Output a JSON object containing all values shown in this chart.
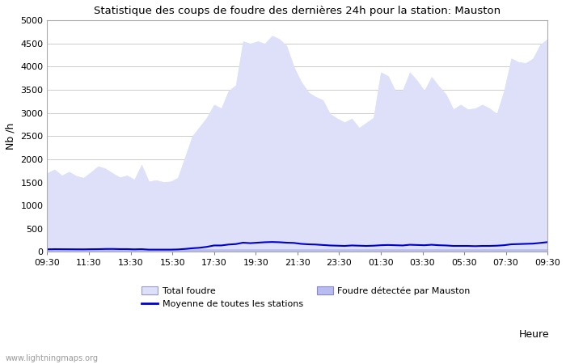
{
  "title": "Statistique des coups de foudre des dernières 24h pour la station: Mauston",
  "ylabel": "Nb /h",
  "xlabel": "Heure",
  "watermark": "www.lightningmaps.org",
  "ylim": [
    0,
    5000
  ],
  "yticks": [
    0,
    500,
    1000,
    1500,
    2000,
    2500,
    3000,
    3500,
    4000,
    4500,
    5000
  ],
  "xtick_labels": [
    "09:30",
    "11:30",
    "13:30",
    "15:30",
    "17:30",
    "19:30",
    "21:30",
    "23:30",
    "01:30",
    "03:30",
    "05:30",
    "07:30",
    "09:30"
  ],
  "bg_color": "#ffffff",
  "plot_bg_color": "#ffffff",
  "grid_color": "#cccccc",
  "total_foudre_color": "#dde0f8",
  "total_foudre_edge": "#9999cc",
  "mauston_color": "#b8bcf0",
  "mauston_edge": "#8888cc",
  "avg_line_color": "#0000cc",
  "legend1_label": "Total foudre",
  "legend2_label": "Moyenne de toutes les stations",
  "legend3_label": "Foudre détectée par Mauston",
  "total_foudre_values": [
    1700,
    1780,
    1650,
    1730,
    1640,
    1600,
    1720,
    1850,
    1800,
    1700,
    1610,
    1650,
    1560,
    1880,
    1520,
    1550,
    1510,
    1520,
    1600,
    2050,
    2500,
    2700,
    2900,
    3180,
    3100,
    3480,
    3600,
    4550,
    4500,
    4550,
    4500,
    4670,
    4600,
    4450,
    4000,
    3680,
    3450,
    3350,
    3280,
    2980,
    2880,
    2800,
    2880,
    2680,
    2790,
    2900,
    3880,
    3800,
    3480,
    3480,
    3880,
    3700,
    3480,
    3780,
    3580,
    3400,
    3080,
    3180,
    3080,
    3100,
    3180,
    3100,
    2980,
    3480,
    4180,
    4100,
    4080,
    4180,
    4480,
    4600
  ],
  "mauston_values": [
    50,
    50,
    50,
    50,
    50,
    50,
    50,
    50,
    50,
    50,
    50,
    50,
    50,
    50,
    50,
    50,
    50,
    50,
    50,
    50,
    50,
    50,
    50,
    50,
    50,
    50,
    50,
    50,
    50,
    50,
    50,
    50,
    50,
    50,
    50,
    50,
    50,
    50,
    50,
    50,
    50,
    50,
    50,
    50,
    50,
    50,
    50,
    50,
    50,
    50,
    50,
    50,
    50,
    50,
    50,
    50,
    50,
    50,
    50,
    50,
    50,
    50,
    50,
    50,
    50,
    50,
    50,
    50,
    50,
    50
  ],
  "avg_values": [
    55,
    58,
    57,
    56,
    55,
    54,
    57,
    58,
    62,
    63,
    59,
    59,
    54,
    58,
    48,
    48,
    48,
    48,
    52,
    63,
    78,
    88,
    108,
    138,
    138,
    158,
    168,
    198,
    188,
    198,
    208,
    213,
    208,
    198,
    193,
    173,
    163,
    158,
    148,
    138,
    133,
    128,
    138,
    133,
    128,
    133,
    143,
    148,
    143,
    138,
    153,
    148,
    143,
    153,
    143,
    138,
    128,
    128,
    128,
    123,
    128,
    128,
    133,
    143,
    163,
    168,
    173,
    178,
    193,
    210
  ]
}
